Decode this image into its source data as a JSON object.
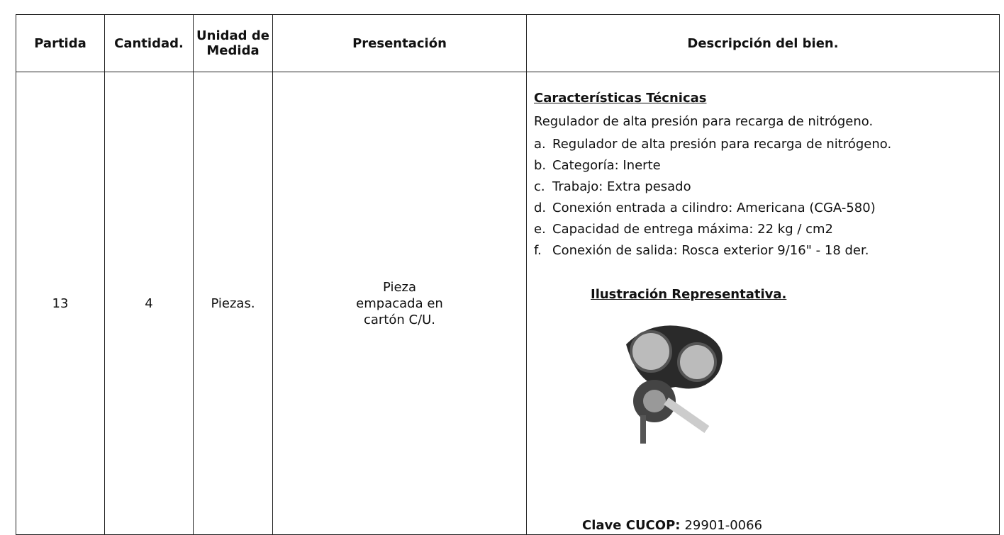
{
  "table": {
    "headers": [
      "Partida",
      "Cantidad.",
      "Unidad de Medida",
      "Presentación",
      "Descripción del bien."
    ],
    "rows": [
      [
        "13",
        "4",
        "Piezas.",
        "Pieza empacada en cartón C/U."
      ]
    ],
    "description": {
      "heading": "Características Técnicas",
      "intro": "Regulador de alta presión para recarga de nitrógeno.",
      "items": [
        {
          "marker": "a.",
          "text": "Regulador de alta presión para recarga de nitrógeno."
        },
        {
          "marker": "b.",
          "text": "Categoría: Inerte"
        },
        {
          "marker": "c.",
          "text": "Trabajo: Extra pesado"
        },
        {
          "marker": "d.",
          "text": "Conexión entrada a cilindro: Americana (CGA-580)"
        },
        {
          "marker": "e.",
          "text": "Capacidad de entrega máxima: 22 kg / cm2"
        },
        {
          "marker": "f.",
          "text": "Conexión de salida: Rosca exterior 9/16\" - 18 der."
        }
      ],
      "illustration_caption": "Ilustración Representativa.",
      "code_label": "Clave CUCOP:",
      "code_value": "29901-0066"
    }
  }
}
